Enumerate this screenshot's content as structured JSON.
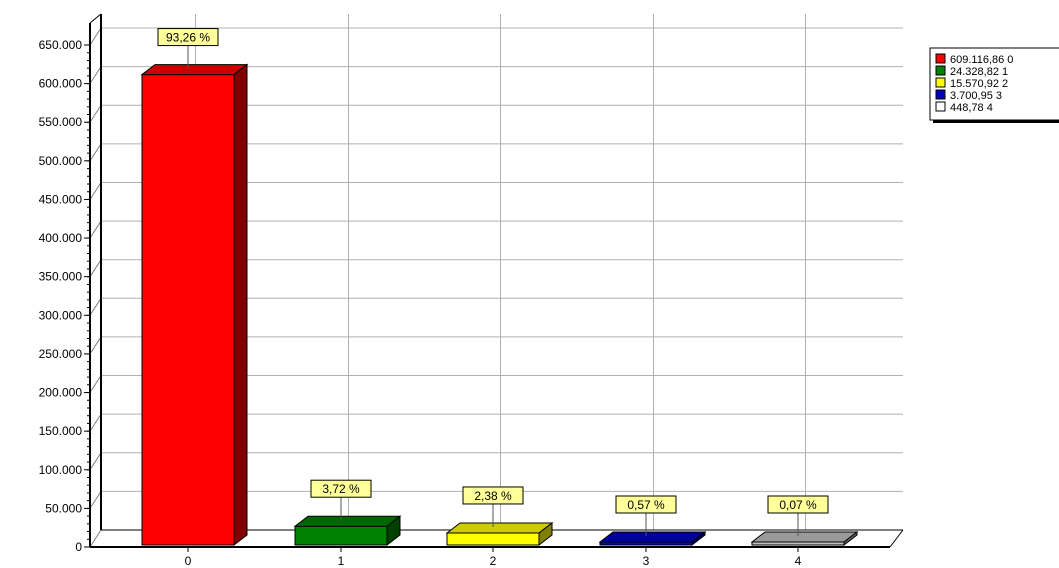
{
  "chart_data": {
    "type": "bar",
    "categories": [
      "0",
      "1",
      "2",
      "3",
      "4"
    ],
    "values": [
      609116.86,
      24328.82,
      15570.92,
      3700.95,
      448.78
    ],
    "percent_labels": [
      "93,26 %",
      "3,72 %",
      "2,38 %",
      "0,57 %",
      "0,07 %"
    ],
    "colors": [
      "#ff0000",
      "#008000",
      "#ffff00",
      "#0000c0",
      "#c0c0c0"
    ],
    "legend": [
      "609.116,86 0",
      "24.328,82 1",
      "15.570,92 2",
      "3.700,95 3",
      "448,78 4"
    ],
    "legend_colors": [
      "#ff0000",
      "#008000",
      "#ffff00",
      "#0000c0",
      "#ffffff"
    ],
    "y_ticks": [
      0,
      50000,
      100000,
      150000,
      200000,
      250000,
      300000,
      350000,
      400000,
      450000,
      500000,
      550000,
      600000,
      650000
    ],
    "y_tick_labels": [
      "0",
      "50.000",
      "100.000",
      "150.000",
      "200.000",
      "250.000",
      "300.000",
      "350.000",
      "400.000",
      "450.000",
      "500.000",
      "550.000",
      "600.000",
      "650.000"
    ],
    "ylim": [
      0,
      650000
    ],
    "grid": true,
    "legend_position": "top-right",
    "style": "3d"
  }
}
